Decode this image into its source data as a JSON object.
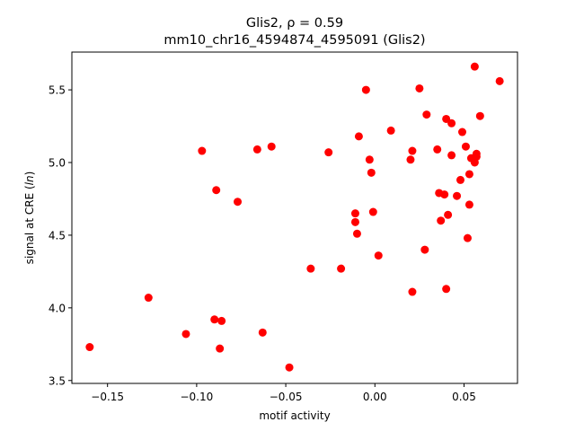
{
  "chart_data": {
    "type": "scatter",
    "title_line1": "Glis2, ρ = 0.59",
    "title_line2": "mm10_chr16_4594874_4595091 (Glis2)",
    "xlabel": "motif activity",
    "ylabel": "signal at CRE (ln)",
    "xlim": [
      -0.17,
      0.08
    ],
    "ylim": [
      3.48,
      5.76
    ],
    "xticks": [
      -0.15,
      -0.1,
      -0.05,
      0.0,
      0.05
    ],
    "xtick_labels": [
      "−0.15",
      "−0.10",
      "−0.05",
      "0.00",
      "0.05"
    ],
    "yticks": [
      3.5,
      4.0,
      4.5,
      5.0,
      5.5
    ],
    "ytick_labels": [
      "3.5",
      "4.0",
      "4.5",
      "5.0",
      "5.5"
    ],
    "grid": false,
    "marker_color": "#ff0000",
    "points": [
      [
        -0.16,
        3.73
      ],
      [
        -0.127,
        4.07
      ],
      [
        -0.106,
        3.82
      ],
      [
        -0.097,
        5.08
      ],
      [
        -0.09,
        3.92
      ],
      [
        -0.089,
        4.81
      ],
      [
        -0.087,
        3.72
      ],
      [
        -0.086,
        3.91
      ],
      [
        -0.077,
        4.73
      ],
      [
        -0.066,
        5.09
      ],
      [
        -0.063,
        3.83
      ],
      [
        -0.058,
        5.11
      ],
      [
        -0.048,
        3.59
      ],
      [
        -0.036,
        4.27
      ],
      [
        -0.026,
        5.07
      ],
      [
        -0.019,
        4.27
      ],
      [
        -0.011,
        4.65
      ],
      [
        -0.011,
        4.59
      ],
      [
        -0.01,
        4.51
      ],
      [
        -0.009,
        5.18
      ],
      [
        -0.005,
        5.5
      ],
      [
        -0.003,
        5.02
      ],
      [
        -0.002,
        4.93
      ],
      [
        -0.001,
        4.66
      ],
      [
        0.002,
        4.36
      ],
      [
        0.009,
        5.22
      ],
      [
        0.02,
        5.02
      ],
      [
        0.021,
        5.08
      ],
      [
        0.021,
        4.11
      ],
      [
        0.025,
        5.51
      ],
      [
        0.028,
        4.4
      ],
      [
        0.029,
        5.33
      ],
      [
        0.035,
        5.09
      ],
      [
        0.036,
        4.79
      ],
      [
        0.037,
        4.6
      ],
      [
        0.039,
        4.78
      ],
      [
        0.04,
        5.3
      ],
      [
        0.04,
        4.13
      ],
      [
        0.041,
        4.64
      ],
      [
        0.043,
        5.27
      ],
      [
        0.043,
        5.05
      ],
      [
        0.046,
        4.77
      ],
      [
        0.048,
        4.88
      ],
      [
        0.049,
        5.21
      ],
      [
        0.051,
        5.11
      ],
      [
        0.052,
        4.48
      ],
      [
        0.053,
        4.71
      ],
      [
        0.053,
        4.92
      ],
      [
        0.054,
        5.03
      ],
      [
        0.056,
        5.0
      ],
      [
        0.056,
        5.66
      ],
      [
        0.057,
        5.04
      ],
      [
        0.057,
        5.06
      ],
      [
        0.059,
        5.32
      ],
      [
        0.07,
        5.56
      ]
    ]
  }
}
